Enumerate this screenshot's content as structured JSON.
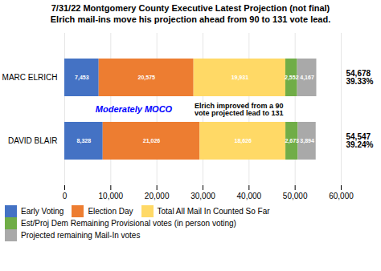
{
  "chart_data": {
    "type": "bar",
    "orientation": "horizontal",
    "stacked": true,
    "title": "7/31/22 Montgomery County Executive Latest Projection (not final)",
    "subtitle": "Elrich mail-ins move his projection ahead from 90 to 131 vote lead.",
    "categories": [
      "MARC ELRICH",
      "DAVID BLAIR"
    ],
    "series": [
      {
        "name": "Early Voting",
        "color": "#4472C4",
        "values": [
          7453,
          8328
        ],
        "value_labels": [
          "7,453",
          "8,328"
        ]
      },
      {
        "name": "Election Day",
        "color": "#ED7D31",
        "values": [
          20575,
          21026
        ],
        "value_labels": [
          "20,575",
          "21,026"
        ]
      },
      {
        "name": "Total All Mail In Counted So Far",
        "color": "#FFD966",
        "values": [
          19931,
          18626
        ],
        "value_labels": [
          "19,931",
          "18,626"
        ]
      },
      {
        "name": "Est/Proj Dem Remaining Provisional votes (in person voting)",
        "color": "#70AD47",
        "values": [
          2552,
          2673
        ],
        "value_labels": [
          "2,552",
          "2,673"
        ]
      },
      {
        "name": "Projected remaining Mail-In votes",
        "color": "#A9A9A9",
        "values": [
          4167,
          3894
        ],
        "value_labels": [
          "4,167",
          "3,894"
        ]
      }
    ],
    "data_labels": true,
    "totals": [
      "54,678\n39.33%",
      "54,547\n39.24%"
    ],
    "annotations": [
      {
        "text": "Moderately MOCO",
        "color": "blue"
      },
      {
        "text": "Elrich improved from a 90\nvote projected lead to 131",
        "color": "black"
      }
    ],
    "xlim": [
      0,
      60000
    ],
    "xticks": [
      0,
      {
        "value": 10000,
        "label": "10,000"
      },
      {
        "value": 20000,
        "label": "20,000"
      },
      {
        "value": 30000,
        "label": "30,000"
      },
      {
        "value": 40000,
        "label": "40,000"
      },
      {
        "value": 50000,
        "label": "50,000"
      },
      {
        "value": 60000,
        "label": "60,000"
      }
    ],
    "grid": true,
    "legend": "bottom"
  }
}
